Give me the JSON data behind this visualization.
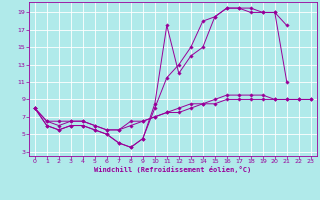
{
  "xlabel": "Windchill (Refroidissement éolien,°C)",
  "bg_color": "#b0eaea",
  "grid_color": "#ffffff",
  "line_color": "#990099",
  "xlim": [
    -0.5,
    23.5
  ],
  "ylim": [
    2.5,
    20.2
  ],
  "xticks": [
    0,
    1,
    2,
    3,
    4,
    5,
    6,
    7,
    8,
    9,
    10,
    11,
    12,
    13,
    14,
    15,
    16,
    17,
    18,
    19,
    20,
    21,
    22,
    23
  ],
  "yticks": [
    3,
    5,
    7,
    9,
    11,
    13,
    15,
    17,
    19
  ],
  "lines": [
    {
      "x": [
        0,
        1,
        2,
        3,
        4,
        5,
        6,
        7,
        8,
        9,
        10,
        11,
        12,
        13,
        14,
        15,
        16,
        17,
        18,
        19,
        20,
        21
      ],
      "y": [
        8,
        6,
        5.5,
        6,
        6,
        5.5,
        5,
        4,
        3.5,
        4.5,
        8,
        11.5,
        13,
        15,
        18,
        18.5,
        19.5,
        19.5,
        19.5,
        19,
        19,
        11
      ]
    },
    {
      "x": [
        0,
        1,
        2,
        3,
        4,
        5,
        6,
        7,
        8,
        9,
        10,
        11,
        12,
        13,
        14,
        15,
        16,
        17,
        18,
        19,
        20,
        21,
        22,
        23
      ],
      "y": [
        8,
        6,
        5.5,
        6,
        6,
        5.5,
        5,
        4,
        3.5,
        4.5,
        8.5,
        17.5,
        12,
        14,
        15,
        18.5,
        19.5,
        19.5,
        19,
        19,
        19,
        17.5,
        null,
        null
      ]
    },
    {
      "x": [
        0,
        1,
        2,
        3,
        4,
        5,
        6,
        7,
        8,
        9,
        10,
        11,
        12,
        13,
        14,
        15,
        16,
        17,
        18,
        19,
        20,
        21,
        22,
        23
      ],
      "y": [
        8,
        6.5,
        6.5,
        6.5,
        6.5,
        6,
        5.5,
        5.5,
        6,
        6.5,
        7,
        7.5,
        7.5,
        8,
        8.5,
        8.5,
        9,
        9,
        9,
        9,
        9,
        9,
        9,
        9
      ]
    },
    {
      "x": [
        0,
        1,
        2,
        3,
        4,
        5,
        6,
        7,
        8,
        9,
        10,
        11,
        12,
        13,
        14,
        15,
        16,
        17,
        18,
        19,
        20,
        21,
        22,
        23
      ],
      "y": [
        8,
        6.5,
        6,
        6.5,
        6.5,
        6,
        5.5,
        5.5,
        6.5,
        6.5,
        7,
        7.5,
        8,
        8.5,
        8.5,
        9,
        9.5,
        9.5,
        9.5,
        9.5,
        9,
        9,
        9,
        9
      ]
    }
  ]
}
